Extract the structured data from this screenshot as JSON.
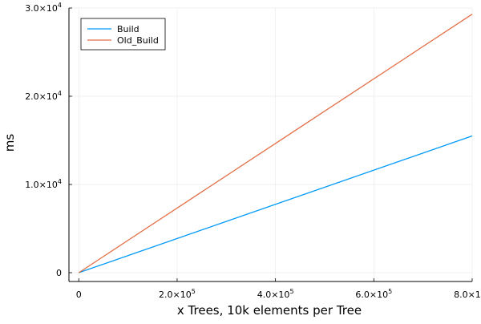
{
  "chart_data": {
    "type": "line",
    "title": "",
    "xlabel": "x Trees, 10k elements per Tree",
    "ylabel": "ms",
    "xlim": [
      -20000,
      800000
    ],
    "ylim": [
      -1000,
      30000
    ],
    "grid": true,
    "legend_position": "top-left",
    "x_ticks": [
      {
        "value": 0,
        "mantissa": "0",
        "exp": ""
      },
      {
        "value": 200000,
        "mantissa": "2.0×10",
        "exp": "5"
      },
      {
        "value": 400000,
        "mantissa": "4.0×10",
        "exp": "5"
      },
      {
        "value": 600000,
        "mantissa": "6.0×10",
        "exp": "5"
      },
      {
        "value": 800000,
        "mantissa": "8.0×10",
        "exp": "5"
      }
    ],
    "y_ticks": [
      {
        "value": 0,
        "mantissa": "0",
        "exp": ""
      },
      {
        "value": 10000,
        "mantissa": "1.0×10",
        "exp": "4"
      },
      {
        "value": 20000,
        "mantissa": "2.0×10",
        "exp": "4"
      },
      {
        "value": 30000,
        "mantissa": "3.0×10",
        "exp": "4"
      }
    ],
    "series": [
      {
        "name": "Build",
        "color": "#009AF9",
        "x": [
          0,
          800000
        ],
        "y": [
          0,
          15500
        ]
      },
      {
        "name": "Old_Build",
        "color": "#E26F46",
        "x": [
          0,
          800000
        ],
        "y": [
          0,
          29300
        ]
      }
    ]
  }
}
